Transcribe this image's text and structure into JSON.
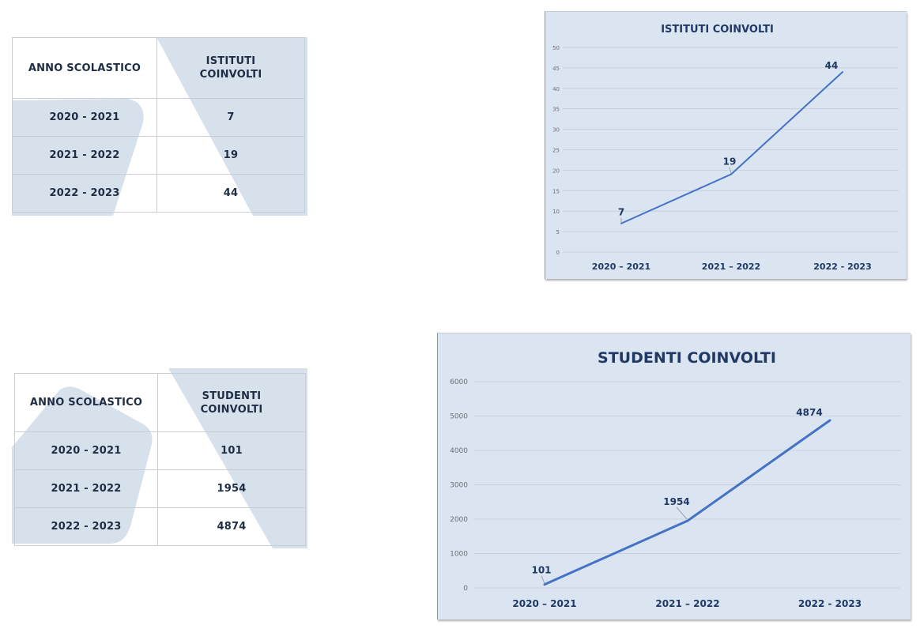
{
  "tables": [
    {
      "header": [
        "ANNO SCOLASTICO",
        "ISTITUTI\nCOINVOLTI"
      ],
      "rows": [
        [
          "2020 - 2021",
          "7"
        ],
        [
          "2021 - 2022",
          "19"
        ],
        [
          "2022 - 2023",
          "44"
        ]
      ]
    },
    {
      "header": [
        "ANNO SCOLASTICO",
        "STUDENTI\nCOINVOLTI"
      ],
      "rows": [
        [
          "2020 - 2021",
          "101"
        ],
        [
          "2021 - 2022",
          "1954"
        ],
        [
          "2022 - 2023",
          "4874"
        ]
      ]
    }
  ],
  "chart_data": [
    {
      "type": "line",
      "title": "ISTITUTI COINVOLTI",
      "categories": [
        "2020 – 2021",
        "2021 – 2022",
        "2022 - 2023"
      ],
      "series": [
        {
          "values": [
            7,
            19,
            44
          ]
        }
      ],
      "data_labels": [
        "7",
        "19",
        "44"
      ],
      "yticks": [
        0,
        5,
        10,
        15,
        20,
        25,
        30,
        35,
        40,
        45,
        50
      ],
      "ylim": [
        0,
        50
      ],
      "xlabel": "",
      "ylabel": "",
      "grid": true,
      "legend": "none",
      "line_color": "#4472c4",
      "background": "#dbe4f1"
    },
    {
      "type": "line",
      "title": "STUDENTI COINVOLTI",
      "categories": [
        "2020 – 2021",
        "2021 – 2022",
        "2022 - 2023"
      ],
      "series": [
        {
          "values": [
            101,
            1954,
            4874
          ]
        }
      ],
      "data_labels": [
        "101",
        "1954",
        "4874"
      ],
      "yticks": [
        0,
        1000,
        2000,
        3000,
        4000,
        5000,
        6000
      ],
      "ylim": [
        0,
        6000
      ],
      "xlabel": "",
      "ylabel": "",
      "grid": true,
      "legend": "none",
      "line_color": "#4472c4",
      "background": "#dbe4f1"
    }
  ]
}
